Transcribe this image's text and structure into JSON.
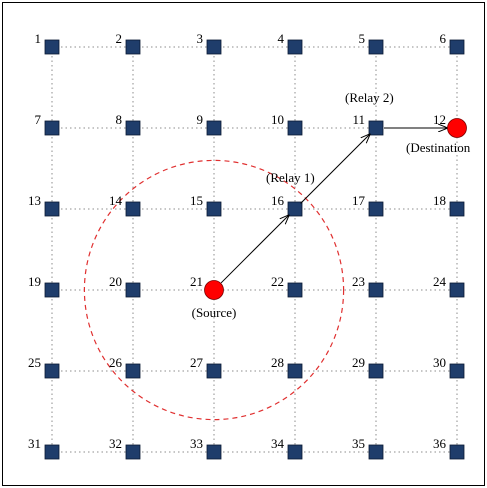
{
  "nodes": [
    {
      "id": 1,
      "label": "1"
    },
    {
      "id": 2,
      "label": "2"
    },
    {
      "id": 3,
      "label": "3"
    },
    {
      "id": 4,
      "label": "4"
    },
    {
      "id": 5,
      "label": "5"
    },
    {
      "id": 6,
      "label": "6"
    },
    {
      "id": 7,
      "label": "7"
    },
    {
      "id": 8,
      "label": "8"
    },
    {
      "id": 9,
      "label": "9"
    },
    {
      "id": 10,
      "label": "10"
    },
    {
      "id": 11,
      "label": "11"
    },
    {
      "id": 12,
      "label": "12"
    },
    {
      "id": 13,
      "label": "13"
    },
    {
      "id": 14,
      "label": "14"
    },
    {
      "id": 15,
      "label": "15"
    },
    {
      "id": 16,
      "label": "16"
    },
    {
      "id": 17,
      "label": "17"
    },
    {
      "id": 18,
      "label": "18"
    },
    {
      "id": 19,
      "label": "19"
    },
    {
      "id": 20,
      "label": "20"
    },
    {
      "id": 21,
      "label": "21"
    },
    {
      "id": 22,
      "label": "22"
    },
    {
      "id": 23,
      "label": "23"
    },
    {
      "id": 24,
      "label": "24"
    },
    {
      "id": 25,
      "label": "25"
    },
    {
      "id": 26,
      "label": "26"
    },
    {
      "id": 27,
      "label": "27"
    },
    {
      "id": 28,
      "label": "28"
    },
    {
      "id": 29,
      "label": "29"
    },
    {
      "id": 30,
      "label": "30"
    },
    {
      "id": 31,
      "label": "31"
    },
    {
      "id": 32,
      "label": "32"
    },
    {
      "id": 33,
      "label": "33"
    },
    {
      "id": 34,
      "label": "34"
    },
    {
      "id": 35,
      "label": "35"
    },
    {
      "id": 36,
      "label": "36"
    }
  ],
  "grid": {
    "rows": 6,
    "cols": 6
  },
  "source": {
    "node": 21,
    "label": "(Source)"
  },
  "destination": {
    "node": 12,
    "label": "(Destination"
  },
  "relays": [
    {
      "node": 16,
      "label": "(Relay 1)"
    },
    {
      "node": 11,
      "label": "(Relay 2)"
    }
  ],
  "route": [
    21,
    16,
    11,
    12
  ],
  "coverage": {
    "center_node": 21,
    "radius_in_grid_spacings": 1.6
  },
  "colors": {
    "node_fill": "#1F3D6B",
    "node_stroke": "#0B1A33",
    "endpoint_fill": "#FF0000",
    "coverage_stroke": "#E03030",
    "grid_line": "#8C8C8C",
    "frame": "#000000"
  }
}
